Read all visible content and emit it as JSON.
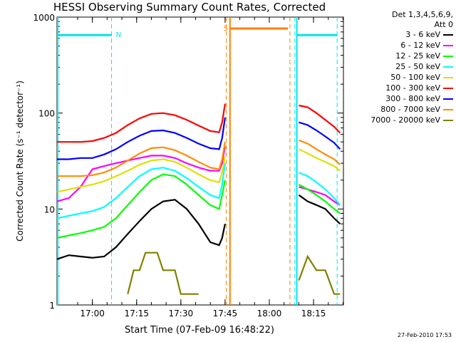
{
  "chart_data": {
    "type": "line",
    "title": "HESSI Observing Summary Count Rates, Corrected",
    "xlabel": "Start Time (07-Feb-09 16:48:22)",
    "ylabel": "Corrected Count Rate (s⁻¹ detector⁻¹)",
    "yscale": "log",
    "ylim": [
      1,
      1000
    ],
    "xlim": [
      "16:48:22",
      "18:25:30"
    ],
    "x_tick_labels": [
      "17:00",
      "17:15",
      "17:30",
      "17:45",
      "18:00",
      "18:15"
    ],
    "x_tick_values_min": [
      720,
      1620,
      2520,
      3420,
      4320,
      5220
    ],
    "y_tick_labels": [
      "1",
      "10",
      "100",
      "1000"
    ],
    "y_tick_values": [
      1,
      10,
      100,
      1000
    ],
    "legend": {
      "header_lines": [
        "Det 1,3,4,5,6,9,",
        "Att 0"
      ],
      "position": "right"
    },
    "series": [
      {
        "name": "3 - 6 keV",
        "color": "#000000",
        "x": [
          0,
          240,
          480,
          720,
          960,
          1200,
          1440,
          1680,
          1920,
          2160,
          2400,
          2640,
          2880,
          3120,
          3300,
          3360,
          3420
        ],
        "y": [
          3,
          3.3,
          3.2,
          3.1,
          3.2,
          4,
          5.5,
          7.5,
          10,
          12,
          12.5,
          10,
          7,
          4.5,
          4.2,
          5,
          7
        ]
      },
      {
        "name": "6 - 12 keV",
        "color": "#ff00ff",
        "x": [
          0,
          240,
          480,
          720,
          960,
          1200,
          1440,
          1680,
          1920,
          2160,
          2400,
          2640,
          2880,
          3120,
          3300,
          3360,
          3420
        ],
        "y": [
          12,
          13,
          17,
          26,
          28,
          30,
          32,
          34,
          36,
          36,
          34,
          30,
          27,
          25,
          25,
          30,
          45
        ]
      },
      {
        "name": "12 - 25 keV",
        "color": "#00ff00",
        "x": [
          0,
          240,
          480,
          720,
          960,
          1200,
          1440,
          1680,
          1920,
          2160,
          2400,
          2640,
          2880,
          3120,
          3300,
          3360,
          3420
        ],
        "y": [
          5,
          5.3,
          5.6,
          6,
          6.5,
          8,
          11,
          15,
          20,
          23,
          22,
          18,
          14,
          11,
          10,
          14,
          20
        ]
      },
      {
        "name": "25 - 50 keV",
        "color": "#00ffff",
        "x": [
          0,
          240,
          480,
          720,
          960,
          1200,
          1440,
          1680,
          1920,
          2160,
          2400,
          2640,
          2880,
          3120,
          3300,
          3360,
          3420
        ],
        "y": [
          8,
          8.5,
          9,
          9.5,
          10.5,
          13,
          17,
          22,
          26,
          27,
          25,
          21,
          17,
          14,
          13,
          18,
          30
        ]
      },
      {
        "name": "50 - 100 keV",
        "color": "#e0e000",
        "x": [
          0,
          240,
          480,
          720,
          960,
          1200,
          1440,
          1680,
          1920,
          2160,
          2400,
          2640,
          2880,
          3120,
          3300,
          3360,
          3420
        ],
        "y": [
          15,
          16,
          17,
          18,
          19.5,
          22,
          25,
          29,
          32,
          33,
          31,
          27,
          23,
          20,
          19,
          24,
          35
        ]
      },
      {
        "name": "100 - 300 keV",
        "color": "#ff0000",
        "x": [
          0,
          240,
          480,
          720,
          960,
          1200,
          1440,
          1680,
          1920,
          2160,
          2400,
          2640,
          2880,
          3120,
          3300,
          3360,
          3420
        ],
        "y": [
          50,
          50,
          50,
          51,
          55,
          62,
          75,
          88,
          98,
          100,
          95,
          85,
          74,
          65,
          63,
          80,
          125
        ]
      },
      {
        "name": "300 - 800 keV",
        "color": "#0000ff",
        "x": [
          0,
          240,
          480,
          720,
          960,
          1200,
          1440,
          1680,
          1920,
          2160,
          2400,
          2640,
          2880,
          3120,
          3300,
          3360,
          3420
        ],
        "y": [
          33,
          33,
          34,
          34,
          37,
          42,
          50,
          58,
          65,
          66,
          62,
          55,
          48,
          43,
          42,
          55,
          90
        ]
      },
      {
        "name": "800 - 7000 keV",
        "color": "#ff8c00",
        "x": [
          0,
          240,
          480,
          720,
          960,
          1200,
          1440,
          1680,
          1920,
          2160,
          2400,
          2640,
          2880,
          3120,
          3300,
          3360,
          3420
        ],
        "y": [
          22,
          22,
          22,
          22.5,
          24,
          27,
          32,
          38,
          43,
          44,
          41,
          36,
          31,
          27,
          26,
          33,
          50
        ]
      },
      {
        "name": "7000 - 20000 keV",
        "color": "#808000",
        "x": [
          1440,
          1560,
          1680,
          1800,
          1920,
          2040,
          2160,
          2280,
          2400,
          2520,
          2640,
          2760,
          2880
        ],
        "y": [
          1.3,
          2.3,
          2.3,
          3.5,
          3.5,
          3.5,
          2.3,
          2.3,
          2.3,
          1.3,
          1.3,
          1.3,
          1.3
        ]
      }
    ],
    "series_after_gap": [
      {
        "name": "3 - 6 keV",
        "x": [
          4920,
          5100,
          5280,
          5460,
          5640,
          5760
        ],
        "y": [
          14,
          12,
          11,
          10,
          8,
          7
        ]
      },
      {
        "name": "6 - 12 keV",
        "x": [
          4920,
          5100,
          5280,
          5460,
          5640,
          5760
        ],
        "y": [
          17,
          16,
          15,
          14,
          12,
          11
        ]
      },
      {
        "name": "12 - 25 keV",
        "x": [
          4920,
          5100,
          5280,
          5460,
          5640,
          5760
        ],
        "y": [
          18,
          16,
          14,
          12,
          10,
          9
        ]
      },
      {
        "name": "25 - 50 keV",
        "x": [
          4920,
          5100,
          5280,
          5460,
          5640,
          5760
        ],
        "y": [
          24,
          22,
          19,
          16,
          13,
          11
        ]
      },
      {
        "name": "50 - 100 keV",
        "x": [
          4920,
          5100,
          5280,
          5460,
          5640,
          5760
        ],
        "y": [
          42,
          38,
          34,
          31,
          28,
          25
        ]
      },
      {
        "name": "100 - 300 keV",
        "x": [
          4920,
          5100,
          5280,
          5460,
          5640,
          5760
        ],
        "y": [
          120,
          115,
          100,
          85,
          72,
          62
        ]
      },
      {
        "name": "300 - 800 keV",
        "x": [
          4920,
          5100,
          5280,
          5460,
          5640,
          5760
        ],
        "y": [
          80,
          75,
          66,
          57,
          49,
          42
        ]
      },
      {
        "name": "800 - 7000 keV",
        "x": [
          4920,
          5100,
          5280,
          5460,
          5640,
          5760
        ],
        "y": [
          52,
          48,
          42,
          37,
          33,
          29
        ]
      },
      {
        "name": "7000 - 20000 keV",
        "x": [
          4920,
          5100,
          5280,
          5460,
          5640,
          5760
        ],
        "y": [
          1.8,
          3.2,
          2.3,
          2.3,
          1.3,
          1.3
        ]
      }
    ],
    "annotations": [
      {
        "text": "N",
        "x": 1110,
        "y": 650,
        "color": "#00e5ee"
      },
      {
        "text": "S",
        "x": 3300,
        "y": 760,
        "color": "#ff8000"
      }
    ],
    "colors": {
      "night_marker": "#00e5ee",
      "saa_marker": "#ff8000"
    }
  },
  "footer": {
    "stamp": "27-Feb-2010 17:53"
  }
}
